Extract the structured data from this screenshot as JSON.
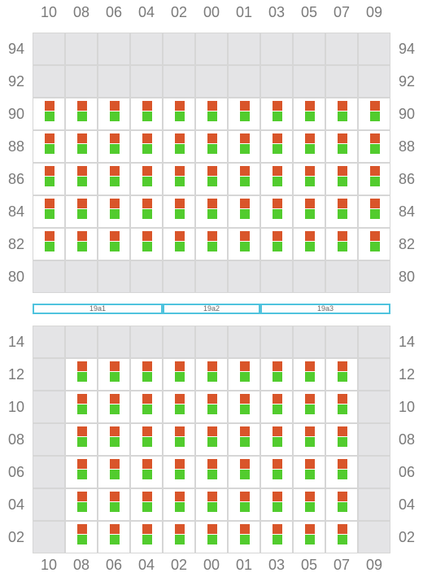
{
  "columns": [
    "10",
    "08",
    "06",
    "04",
    "02",
    "00",
    "01",
    "03",
    "05",
    "07",
    "09"
  ],
  "colors": {
    "top_square": "#d9552a",
    "bottom_square": "#52cc2e",
    "empty_cell": "#e4e4e6"
  },
  "upper_block": {
    "rows": [
      {
        "label": "94",
        "filled": [
          false,
          false,
          false,
          false,
          false,
          false,
          false,
          false,
          false,
          false,
          false
        ]
      },
      {
        "label": "92",
        "filled": [
          false,
          false,
          false,
          false,
          false,
          false,
          false,
          false,
          false,
          false,
          false
        ]
      },
      {
        "label": "90",
        "filled": [
          true,
          true,
          true,
          true,
          true,
          true,
          true,
          true,
          true,
          true,
          true
        ]
      },
      {
        "label": "88",
        "filled": [
          true,
          true,
          true,
          true,
          true,
          true,
          true,
          true,
          true,
          true,
          true
        ]
      },
      {
        "label": "86",
        "filled": [
          true,
          true,
          true,
          true,
          true,
          true,
          true,
          true,
          true,
          true,
          true
        ]
      },
      {
        "label": "84",
        "filled": [
          true,
          true,
          true,
          true,
          true,
          true,
          true,
          true,
          true,
          true,
          true
        ]
      },
      {
        "label": "82",
        "filled": [
          true,
          true,
          true,
          true,
          true,
          true,
          true,
          true,
          true,
          true,
          true
        ]
      },
      {
        "label": "80",
        "filled": [
          false,
          false,
          false,
          false,
          false,
          false,
          false,
          false,
          false,
          false,
          false
        ]
      }
    ]
  },
  "zones": [
    {
      "label": "19a1",
      "from_col": 0,
      "to_col": 3
    },
    {
      "label": "19a2",
      "from_col": 4,
      "to_col": 6
    },
    {
      "label": "19a3",
      "from_col": 7,
      "to_col": 10
    }
  ],
  "lower_block": {
    "rows": [
      {
        "label": "14",
        "filled": [
          false,
          false,
          false,
          false,
          false,
          false,
          false,
          false,
          false,
          false,
          false
        ]
      },
      {
        "label": "12",
        "filled": [
          false,
          true,
          true,
          true,
          true,
          true,
          true,
          true,
          true,
          true,
          false
        ]
      },
      {
        "label": "10",
        "filled": [
          false,
          true,
          true,
          true,
          true,
          true,
          true,
          true,
          true,
          true,
          false
        ]
      },
      {
        "label": "08",
        "filled": [
          false,
          true,
          true,
          true,
          true,
          true,
          true,
          true,
          true,
          true,
          false
        ]
      },
      {
        "label": "06",
        "filled": [
          false,
          true,
          true,
          true,
          true,
          true,
          true,
          true,
          true,
          true,
          false
        ]
      },
      {
        "label": "04",
        "filled": [
          false,
          true,
          true,
          true,
          true,
          true,
          true,
          true,
          true,
          true,
          false
        ]
      },
      {
        "label": "02",
        "filled": [
          false,
          true,
          true,
          true,
          true,
          true,
          true,
          true,
          true,
          true,
          false
        ]
      }
    ]
  }
}
